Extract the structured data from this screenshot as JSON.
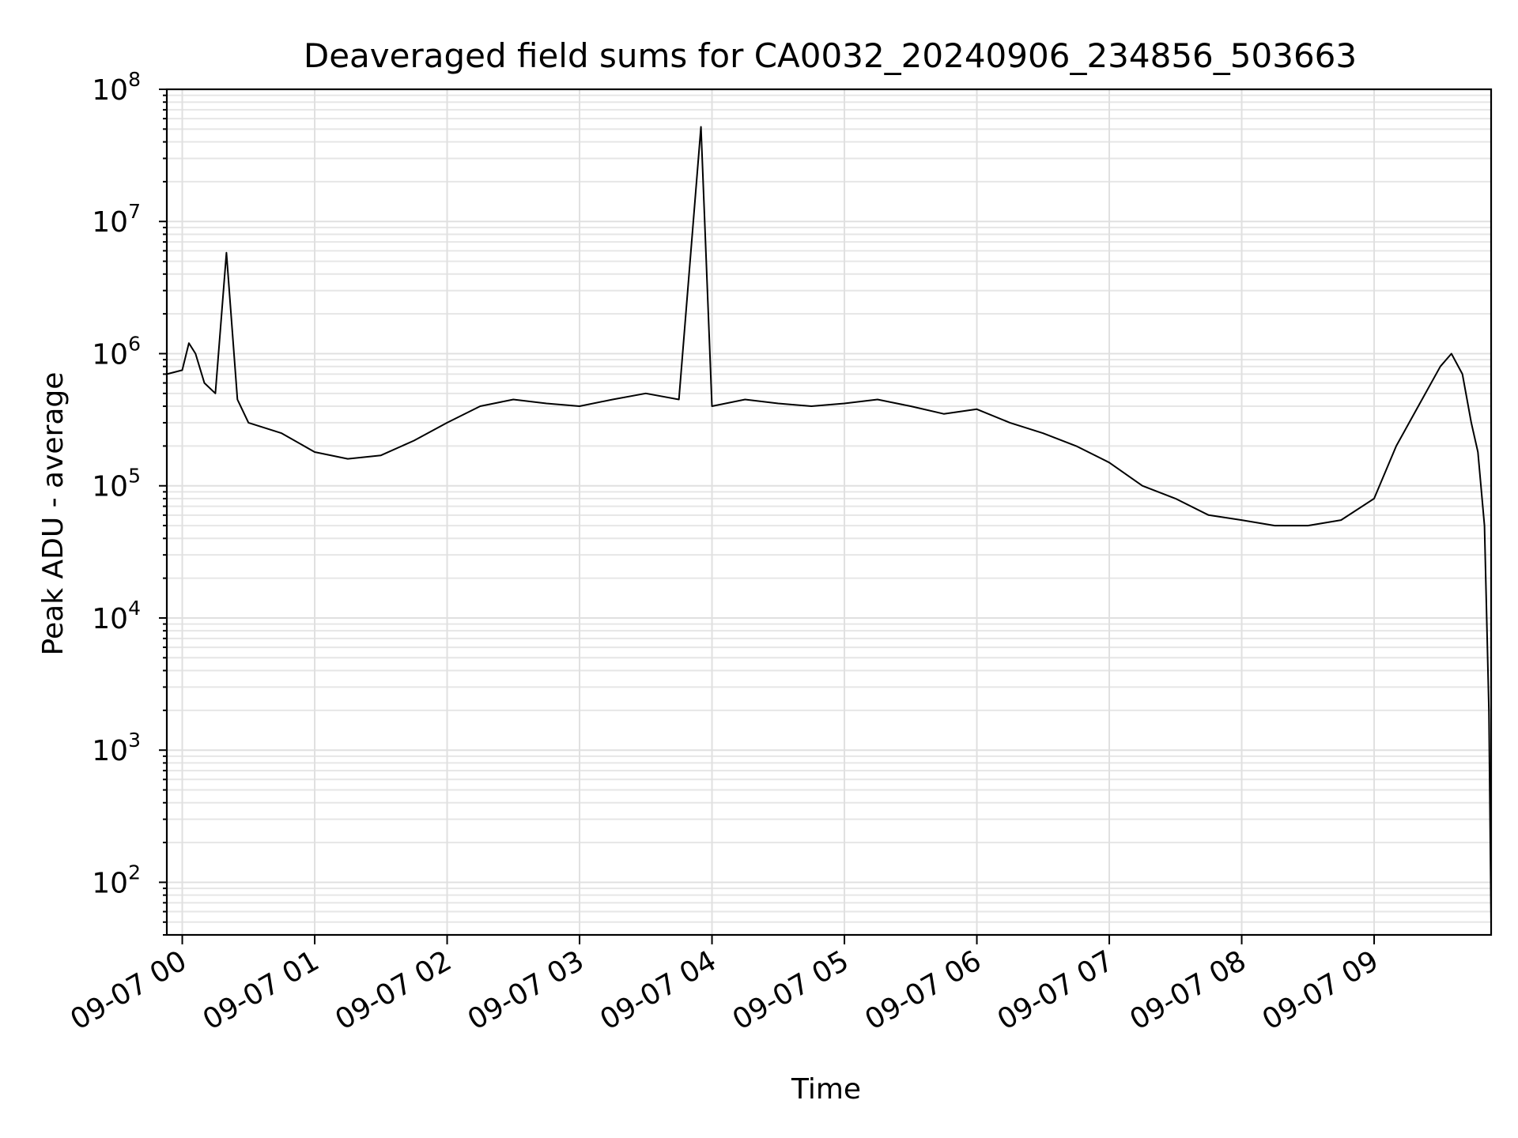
{
  "chart_data": {
    "type": "line",
    "title": "Deaveraged field sums for CA0032_20240906_234856_503663",
    "xlabel": "Time",
    "ylabel": "Peak ADU - average",
    "yscale": "log",
    "ylim": [
      40,
      100000000
    ],
    "xlim": [
      "09-06 23:53",
      "09-07 09:53"
    ],
    "x_tick_labels": [
      "09-07 00",
      "09-07 01",
      "09-07 02",
      "09-07 03",
      "09-07 04",
      "09-07 05",
      "09-07 06",
      "09-07 07",
      "09-07 08",
      "09-07 09"
    ],
    "y_tick_values": [
      100,
      1000,
      10000,
      100000,
      1000000,
      10000000,
      100000000
    ],
    "y_tick_base": "10",
    "y_tick_exponents": [
      "2",
      "3",
      "4",
      "5",
      "6",
      "7",
      "8"
    ],
    "grid": true,
    "line_color": "#000000",
    "grid_color": "#e0e0e0",
    "series": [
      {
        "x": [
          "09-06 23:53",
          "09-07 00:00",
          "09-07 00:03",
          "09-07 00:06",
          "09-07 00:10",
          "09-07 00:15",
          "09-07 00:20",
          "09-07 00:25",
          "09-07 00:30",
          "09-07 00:45",
          "09-07 01:00",
          "09-07 01:15",
          "09-07 01:30",
          "09-07 01:45",
          "09-07 02:00",
          "09-07 02:15",
          "09-07 02:30",
          "09-07 02:45",
          "09-07 03:00",
          "09-07 03:15",
          "09-07 03:30",
          "09-07 03:45",
          "09-07 03:55",
          "09-07 04:00",
          "09-07 04:15",
          "09-07 04:30",
          "09-07 04:45",
          "09-07 05:00",
          "09-07 05:15",
          "09-07 05:30",
          "09-07 05:45",
          "09-07 06:00",
          "09-07 06:15",
          "09-07 06:30",
          "09-07 06:45",
          "09-07 07:00",
          "09-07 07:15",
          "09-07 07:30",
          "09-07 07:45",
          "09-07 08:00",
          "09-07 08:15",
          "09-07 08:30",
          "09-07 08:45",
          "09-07 09:00",
          "09-07 09:10",
          "09-07 09:20",
          "09-07 09:30",
          "09-07 09:35",
          "09-07 09:40",
          "09-07 09:44",
          "09-07 09:47",
          "09-07 09:50",
          "09-07 09:52",
          "09-07 09:53"
        ],
        "y": [
          700000,
          750000,
          1200000,
          1000000,
          600000,
          500000,
          5800000,
          450000,
          300000,
          250000,
          180000,
          160000,
          170000,
          220000,
          300000,
          400000,
          450000,
          420000,
          400000,
          450000,
          500000,
          450000,
          52000000,
          400000,
          450000,
          420000,
          400000,
          420000,
          450000,
          400000,
          350000,
          380000,
          300000,
          250000,
          200000,
          150000,
          100000,
          80000,
          60000,
          55000,
          50000,
          50000,
          55000,
          80000,
          200000,
          400000,
          800000,
          1000000,
          700000,
          300000,
          180000,
          50000,
          2000,
          50
        ]
      }
    ]
  }
}
